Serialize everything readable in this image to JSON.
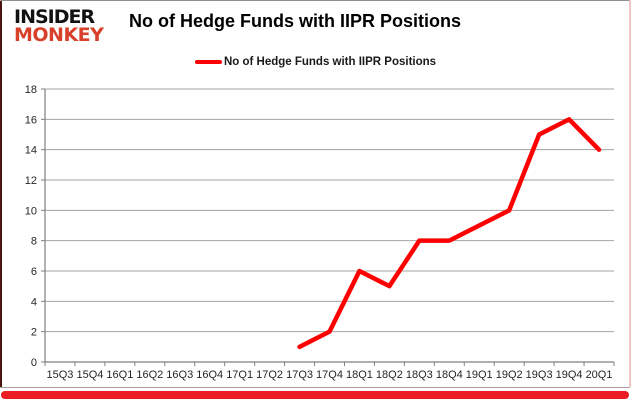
{
  "brand": {
    "line1": "INSIDER",
    "line2": "MONKEY",
    "monkey_color": "#d8402a"
  },
  "header": {
    "title": "No of Hedge Funds with IIPR Positions"
  },
  "legend": {
    "label": "No of Hedge Funds with IIPR Positions",
    "color": "#fe0000"
  },
  "accents": {
    "bottom_bar_color": "#ec1c23"
  },
  "chart_data": {
    "type": "line",
    "title": "No of Hedge Funds with IIPR Positions",
    "categories": [
      "15Q3",
      "15Q4",
      "16Q1",
      "16Q2",
      "16Q3",
      "16Q4",
      "17Q1",
      "17Q2",
      "17Q3",
      "17Q4",
      "18Q1",
      "18Q2",
      "18Q3",
      "18Q4",
      "19Q1",
      "19Q2",
      "19Q3",
      "19Q4",
      "20Q1"
    ],
    "series": [
      {
        "name": "No of Hedge Funds with IIPR Positions",
        "color": "#fe0000",
        "values": [
          null,
          null,
          null,
          null,
          null,
          null,
          null,
          null,
          1,
          2,
          6,
          5,
          8,
          8,
          9,
          10,
          15,
          16,
          14
        ]
      }
    ],
    "xlabel": "",
    "ylabel": "",
    "ylim": [
      0,
      18
    ],
    "ytick_step": 2,
    "grid": true,
    "legend_position": "top"
  }
}
